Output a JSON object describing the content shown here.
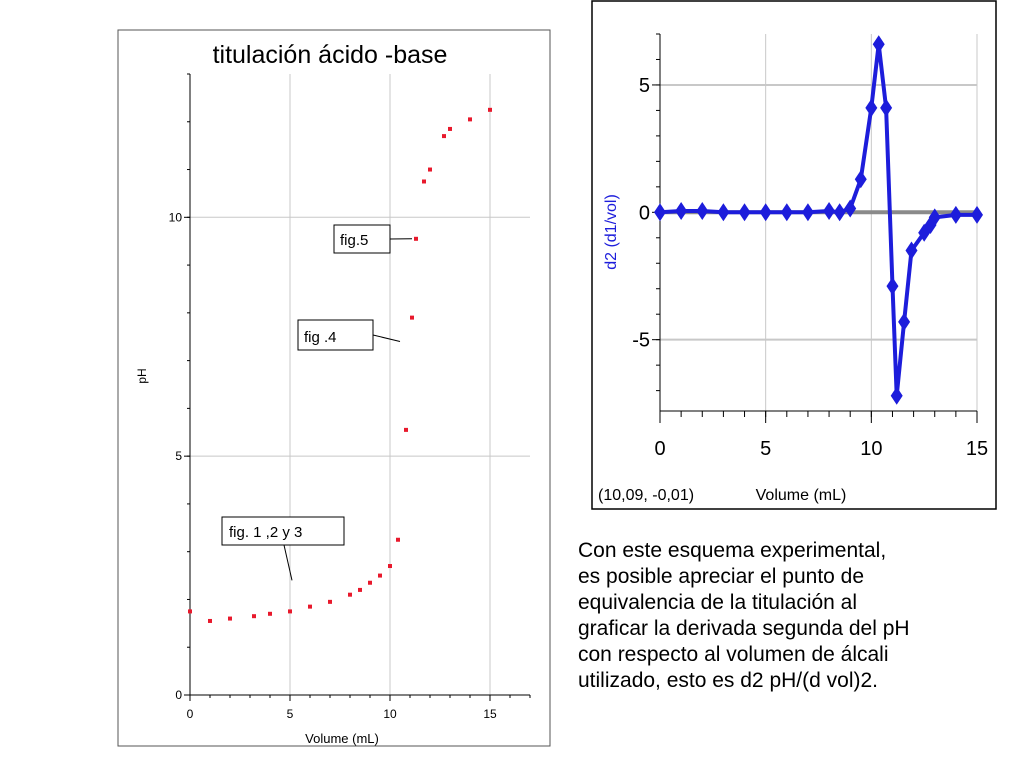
{
  "colors": {
    "ph_points": "#e8192c",
    "derivative_series": "#1d1ddb",
    "grid": "#c8c8c8",
    "zero_line": "#8a8a8a"
  },
  "chart_data": [
    {
      "type": "scatter",
      "title": "titulación ácido -base",
      "xlabel": "Volume (mL)",
      "ylabel": "pH",
      "xlim": [
        0,
        17
      ],
      "ylim": [
        0,
        13
      ],
      "x_ticks": [
        0,
        5,
        10,
        15
      ],
      "y_ticks": [
        0,
        5,
        10
      ],
      "grid": true,
      "series": [
        {
          "x": [
            0,
            1,
            2,
            3.2,
            4,
            5,
            6,
            7,
            8,
            8.5,
            9,
            9.5,
            10,
            10.4,
            10.8,
            11.1,
            11.3,
            11.7,
            12,
            12.7,
            13,
            14,
            15
          ],
          "y": [
            1.75,
            1.55,
            1.6,
            1.65,
            1.7,
            1.75,
            1.85,
            1.95,
            2.1,
            2.2,
            2.35,
            2.5,
            2.7,
            3.25,
            5.55,
            7.9,
            9.55,
            10.75,
            11,
            11.7,
            11.85,
            12.05,
            12.25
          ]
        }
      ],
      "annotations": [
        {
          "text": "fig.5",
          "points_to": {
            "x": 11.1,
            "y": 9.55
          }
        },
        {
          "text": "fig    .4",
          "points_to": {
            "x": 10.5,
            "y": 7.4
          }
        },
        {
          "text": "fig. 1 ,2  y 3",
          "points_to": {
            "x": 5.1,
            "y": 2.4
          }
        }
      ]
    },
    {
      "type": "line",
      "xlabel": "Volume (mL)",
      "ylabel": "d2 (d1/vol)",
      "xlim": [
        0,
        15
      ],
      "ylim": [
        -7.8,
        7
      ],
      "x_ticks": [
        0,
        5,
        10,
        15
      ],
      "y_ticks": [
        -5,
        0,
        5
      ],
      "grid": true,
      "readout": "(10,09, -0,01)",
      "series": [
        {
          "x": [
            0,
            1,
            2,
            3,
            4,
            5,
            6,
            7,
            8,
            8.5,
            9,
            9.5,
            10,
            10.35,
            10.7,
            11,
            11.2,
            11.55,
            11.9,
            12.5,
            12.8,
            13,
            14,
            15
          ],
          "y": [
            0,
            0.05,
            0.05,
            0,
            0,
            0,
            0,
            0,
            0.05,
            0,
            0.15,
            1.3,
            4.1,
            6.6,
            4.1,
            -2.9,
            -7.2,
            -4.3,
            -1.5,
            -0.8,
            -0.5,
            -0.2,
            -0.1,
            -0.1
          ]
        }
      ]
    }
  ],
  "caption": {
    "lines": [
      "Con este esquema experimental,",
      "es posible apreciar el punto de",
      "equivalencia de la titulación al",
      "graficar la derivada segunda del pH",
      "con respecto al volumen de álcali",
      "utilizado, esto es d2  pH/(d vol)2."
    ]
  }
}
